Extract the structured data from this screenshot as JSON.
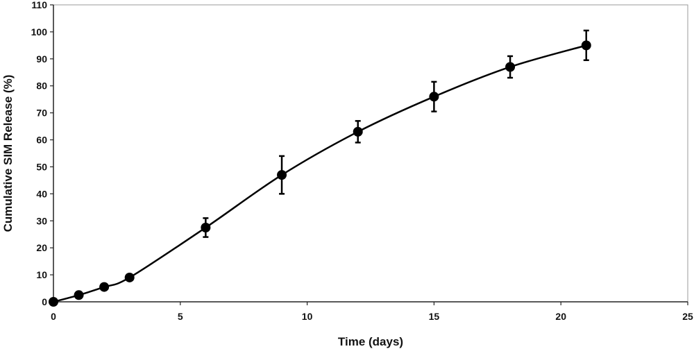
{
  "chart_data": {
    "type": "line",
    "title": "",
    "xlabel": "Time (days)",
    "ylabel": "Cumulative  SIM Release (%)",
    "xlim": [
      0,
      25
    ],
    "ylim": [
      0,
      110
    ],
    "xticks": [
      0,
      5,
      10,
      15,
      20,
      25
    ],
    "yticks": [
      0,
      10,
      20,
      30,
      40,
      50,
      60,
      70,
      80,
      90,
      100,
      110
    ],
    "grid": false,
    "legend": "none",
    "color": "#000000",
    "series": [
      {
        "x": [
          0,
          1,
          2,
          3,
          6,
          9,
          12,
          15,
          18,
          21
        ],
        "y": [
          0,
          2.5,
          5.5,
          9,
          27.5,
          47,
          63,
          76,
          87,
          95
        ],
        "error": [
          0,
          0,
          0,
          0,
          3.5,
          7,
          4,
          5.5,
          4,
          5.5
        ]
      }
    ]
  }
}
